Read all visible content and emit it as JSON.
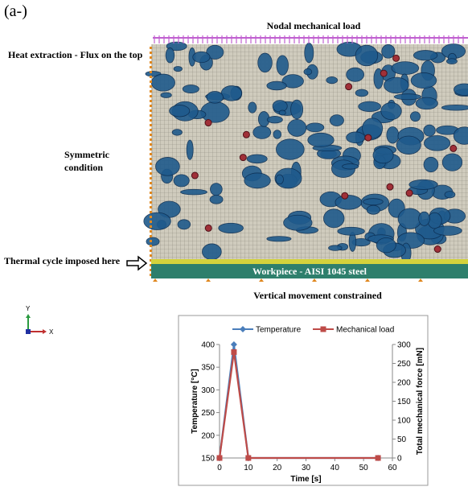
{
  "panel_label": "(a-)",
  "labels": {
    "top_load": "Nodal mechanical load",
    "heat": "Heat extraction - Flux on the top",
    "sym1": "Symmetric",
    "sym2": "condition",
    "thermal": "Thermal cycle imposed here",
    "workpiece": "Workpiece - AISI 1045 steel",
    "bottom": "Vertical movement constrained"
  },
  "axes_glyph": {
    "y": "Y",
    "x": "X"
  },
  "chart_data": {
    "type": "line",
    "x": [
      0,
      5,
      10,
      55
    ],
    "xlabel": "Time [s]",
    "ylabel": "Temperature [°C]",
    "y2label": "Total mechanical force [mN]",
    "xlim": [
      0,
      60
    ],
    "xticks": [
      0,
      10,
      20,
      30,
      40,
      50,
      60
    ],
    "ylim": [
      150,
      400
    ],
    "yticks": [
      150,
      200,
      250,
      300,
      350,
      400
    ],
    "y2lim": [
      0,
      300
    ],
    "y2ticks": [
      0,
      50,
      100,
      150,
      200,
      250,
      300
    ],
    "legend": "top",
    "series": [
      {
        "name": "Temperature",
        "color": "#4a7ebb",
        "marker": "diamond",
        "values": [
          150,
          400,
          150,
          150
        ]
      },
      {
        "name": "Mechanical load",
        "color": "#be4b48",
        "marker": "square",
        "axis": "y2",
        "values": [
          0,
          280,
          0,
          0
        ]
      }
    ]
  }
}
